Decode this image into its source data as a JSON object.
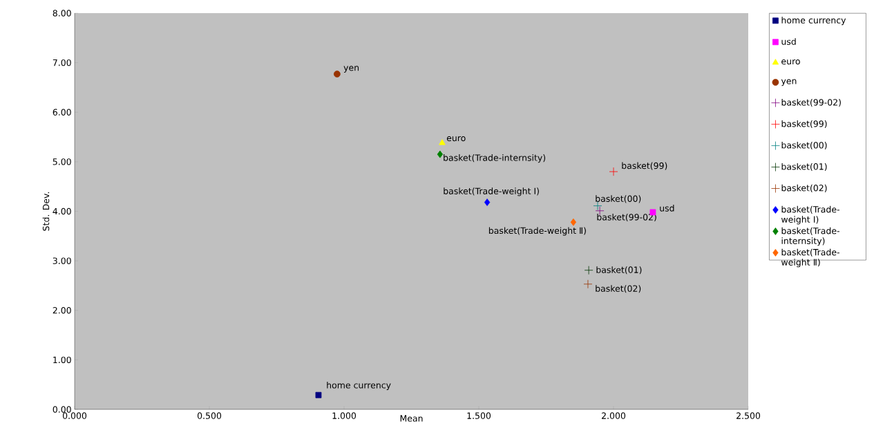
{
  "chart_data": {
    "type": "scatter",
    "xlabel": "Mean",
    "ylabel": "Std. Dev.",
    "xlim": [
      0,
      2.5
    ],
    "ylim": [
      0,
      8
    ],
    "xticks": [
      {
        "value": 0,
        "label": "0.000"
      },
      {
        "value": 0.5,
        "label": "0.500"
      },
      {
        "value": 1,
        "label": "1.000"
      },
      {
        "value": 1.5,
        "label": "1.500"
      },
      {
        "value": 2,
        "label": "2.000"
      },
      {
        "value": 2.5,
        "label": "2.500"
      }
    ],
    "yticks": [
      {
        "value": 0,
        "label": "0.00"
      },
      {
        "value": 1,
        "label": "1.00"
      },
      {
        "value": 2,
        "label": "2.00"
      },
      {
        "value": 3,
        "label": "3.00"
      },
      {
        "value": 4,
        "label": "4.00"
      },
      {
        "value": 5,
        "label": "5.00"
      },
      {
        "value": 6,
        "label": "6.00"
      },
      {
        "value": 7,
        "label": "7.00"
      },
      {
        "value": 8,
        "label": "8.00"
      }
    ],
    "grid": false,
    "legend": "right",
    "series": [
      {
        "name": "home currency",
        "color": "#000080",
        "marker": "square",
        "x": [
          0.905
        ],
        "values": [
          0.29
        ]
      },
      {
        "name": "usd",
        "color": "#ff00ff",
        "marker": "square",
        "x": [
          2.146
        ],
        "values": [
          3.98
        ]
      },
      {
        "name": "euro",
        "color": "#ffff00",
        "marker": "triangle",
        "x": [
          1.364
        ],
        "values": [
          5.38
        ]
      },
      {
        "name": "yen",
        "color": "#993300",
        "marker": "circle",
        "x": [
          0.974
        ],
        "values": [
          6.77
        ]
      },
      {
        "name": "basket(99-02)",
        "color": "#800080",
        "marker": "cross",
        "x": [
          1.949
        ],
        "values": [
          4.01
        ]
      },
      {
        "name": "basket(99)",
        "color": "#ff0000",
        "marker": "cross",
        "x": [
          2.0
        ],
        "values": [
          4.8
        ]
      },
      {
        "name": "basket(00)",
        "color": "#008080",
        "marker": "cross",
        "x": [
          1.941
        ],
        "values": [
          4.11
        ]
      },
      {
        "name": "basket(01)",
        "color": "#003300",
        "marker": "cross",
        "x": [
          1.908
        ],
        "values": [
          2.81
        ]
      },
      {
        "name": "basket(02)",
        "color": "#993300",
        "marker": "cross",
        "x": [
          1.905
        ],
        "values": [
          2.53
        ]
      },
      {
        "name": "basket(Trade-weight Ⅰ)",
        "color": "#0000ff",
        "marker": "diamond",
        "x": [
          1.531
        ],
        "values": [
          4.18
        ]
      },
      {
        "name": "basket(Trade-internsity)",
        "color": "#008000",
        "marker": "diamond",
        "x": [
          1.356
        ],
        "values": [
          5.15
        ]
      },
      {
        "name": "basket(Trade-weight Ⅱ)",
        "color": "#ff6600",
        "marker": "diamond",
        "x": [
          1.851
        ],
        "values": [
          3.78
        ]
      }
    ]
  }
}
